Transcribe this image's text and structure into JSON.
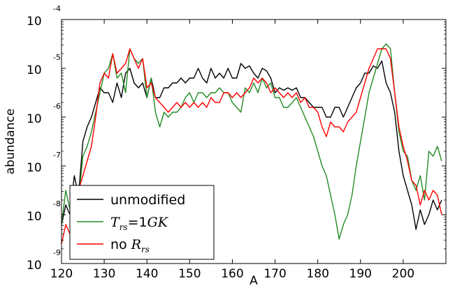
{
  "chart_data": {
    "type": "line",
    "xlabel": "A",
    "ylabel": "abundance",
    "xlim": [
      120,
      210
    ],
    "ylim_log10": [
      -9,
      -4
    ],
    "yscale": "log",
    "grid": false,
    "legend_placement": "lower-left",
    "x_ticks": [
      "120",
      "130",
      "140",
      "150",
      "160",
      "170",
      "180",
      "190",
      "200"
    ],
    "y_ticks": [
      {
        "base": "10",
        "exp": "-4"
      },
      {
        "base": "10",
        "exp": "-5"
      },
      {
        "base": "10",
        "exp": "-6"
      },
      {
        "base": "10",
        "exp": "-7"
      },
      {
        "base": "10",
        "exp": "-8"
      },
      {
        "base": "10",
        "exp": "-9"
      }
    ],
    "series": [
      {
        "name": "unmodified",
        "legend": {
          "parts": [
            {
              "t": "unmodified",
              "style": "plain"
            }
          ]
        },
        "color": "#000000",
        "x": [
          120,
          121,
          122,
          123,
          124,
          125,
          126,
          127,
          128,
          129,
          130,
          131,
          132,
          133,
          134,
          135,
          136,
          137,
          138,
          139,
          140,
          141,
          142,
          143,
          144,
          145,
          146,
          147,
          148,
          149,
          150,
          151,
          152,
          153,
          154,
          155,
          156,
          157,
          158,
          159,
          160,
          161,
          162,
          163,
          164,
          165,
          166,
          167,
          168,
          169,
          170,
          171,
          172,
          173,
          174,
          175,
          176,
          177,
          178,
          179,
          180,
          181,
          182,
          183,
          184,
          185,
          186,
          187,
          188,
          189,
          190,
          191,
          192,
          193,
          194,
          195,
          196,
          197,
          198,
          199,
          200,
          201,
          202,
          203,
          204,
          205,
          206,
          207,
          208,
          209
        ],
        "log10": [
          -8.2,
          -7.8,
          -8.0,
          -7.2,
          -7.6,
          -6.5,
          -6.2,
          -6.0,
          -5.7,
          -5.4,
          -5.5,
          -5.5,
          -5.7,
          -5.3,
          -5.6,
          -5.1,
          -5.0,
          -5.3,
          -5.4,
          -5.3,
          -5.6,
          -5.2,
          -5.6,
          -5.6,
          -5.4,
          -5.4,
          -5.3,
          -5.3,
          -5.2,
          -5.3,
          -5.2,
          -5.2,
          -5.0,
          -5.2,
          -5.3,
          -5.0,
          -5.2,
          -5.1,
          -5.2,
          -5.0,
          -5.2,
          -5.2,
          -4.9,
          -5.0,
          -4.95,
          -5.1,
          -5.2,
          -5.0,
          -5.05,
          -5.2,
          -5.5,
          -5.4,
          -5.45,
          -5.4,
          -5.45,
          -5.4,
          -5.6,
          -5.6,
          -5.7,
          -5.8,
          -5.8,
          -5.8,
          -6.0,
          -6.0,
          -5.8,
          -5.8,
          -6.0,
          -5.8,
          -5.6,
          -5.4,
          -5.3,
          -5.1,
          -5.1,
          -4.95,
          -5.0,
          -4.85,
          -5.3,
          -5.5,
          -5.9,
          -6.7,
          -7.2,
          -7.5,
          -7.8,
          -8.3,
          -7.9,
          -8.2,
          -8.0,
          -7.7,
          -7.9,
          -7.7
        ]
      },
      {
        "name": "T_rs=1GK",
        "legend": {
          "parts": [
            {
              "t": "T",
              "style": "math"
            },
            {
              "t": "rs",
              "style": "sub"
            },
            {
              "t": "=1",
              "style": "plainmath"
            },
            {
              "t": "GK",
              "style": "math"
            }
          ]
        },
        "color": "#228B22",
        "x": [
          120,
          121,
          122,
          123,
          124,
          125,
          126,
          127,
          128,
          129,
          130,
          131,
          132,
          133,
          134,
          135,
          136,
          137,
          138,
          139,
          140,
          141,
          142,
          143,
          144,
          145,
          146,
          147,
          148,
          149,
          150,
          151,
          152,
          153,
          154,
          155,
          156,
          157,
          158,
          159,
          160,
          161,
          162,
          163,
          164,
          165,
          166,
          167,
          168,
          169,
          170,
          171,
          172,
          173,
          174,
          175,
          176,
          177,
          178,
          179,
          180,
          181,
          182,
          183,
          184,
          185,
          186,
          187,
          188,
          189,
          190,
          191,
          192,
          193,
          194,
          195,
          196,
          197,
          198,
          199,
          200,
          201,
          202,
          203,
          204,
          205,
          206,
          207,
          208,
          209
        ],
        "log10": [
          -8.2,
          -7.5,
          -7.9,
          -7.4,
          -7.7,
          -6.8,
          -6.6,
          -6.3,
          -5.9,
          -5.5,
          -5.1,
          -5.0,
          -4.7,
          -5.2,
          -5.1,
          -5.5,
          -4.6,
          -4.8,
          -4.9,
          -4.8,
          -5.6,
          -5.2,
          -5.9,
          -6.2,
          -5.9,
          -6.0,
          -5.9,
          -5.9,
          -5.8,
          -5.6,
          -5.5,
          -5.7,
          -5.5,
          -5.5,
          -5.6,
          -5.5,
          -5.5,
          -5.4,
          -5.5,
          -5.5,
          -5.7,
          -5.8,
          -5.9,
          -5.4,
          -5.5,
          -5.3,
          -5.5,
          -5.2,
          -5.4,
          -5.3,
          -5.6,
          -5.6,
          -5.8,
          -5.8,
          -5.7,
          -5.6,
          -5.8,
          -6.0,
          -6.2,
          -6.4,
          -6.7,
          -7.0,
          -7.2,
          -7.6,
          -8.0,
          -8.5,
          -8.2,
          -8.0,
          -7.6,
          -7.0,
          -6.5,
          -6.0,
          -5.5,
          -5.2,
          -4.9,
          -4.6,
          -4.5,
          -4.6,
          -5.5,
          -6.3,
          -6.7,
          -6.8,
          -7.3,
          -7.5,
          -7.2,
          -7.7,
          -6.7,
          -6.8,
          -6.6,
          -6.9
        ]
      },
      {
        "name": "no R_rs",
        "legend": {
          "parts": [
            {
              "t": "no ",
              "style": "plain"
            },
            {
              "t": "R",
              "style": "math"
            },
            {
              "t": "rs",
              "style": "sub"
            }
          ]
        },
        "color": "#ff0000",
        "x": [
          120,
          121,
          122,
          123,
          124,
          125,
          126,
          127,
          128,
          129,
          130,
          131,
          132,
          133,
          134,
          135,
          136,
          137,
          138,
          139,
          140,
          141,
          142,
          143,
          144,
          145,
          146,
          147,
          148,
          149,
          150,
          151,
          152,
          153,
          154,
          155,
          156,
          157,
          158,
          159,
          160,
          161,
          162,
          163,
          164,
          165,
          166,
          167,
          168,
          169,
          170,
          171,
          172,
          173,
          174,
          175,
          176,
          177,
          178,
          179,
          180,
          181,
          182,
          183,
          184,
          185,
          186,
          187,
          188,
          189,
          190,
          191,
          192,
          193,
          194,
          195,
          196,
          197,
          198,
          199,
          200,
          201,
          202,
          203,
          204,
          205,
          206,
          207,
          208,
          209
        ],
        "log10": [
          -8.6,
          -8.2,
          -8.4,
          -8.0,
          -7.5,
          -7.2,
          -6.9,
          -6.6,
          -6.0,
          -5.3,
          -5.1,
          -5.2,
          -4.7,
          -5.1,
          -5.0,
          -4.9,
          -4.6,
          -4.8,
          -5.0,
          -4.8,
          -5.4,
          -5.3,
          -5.6,
          -5.7,
          -5.8,
          -5.9,
          -5.8,
          -5.7,
          -5.8,
          -5.7,
          -5.8,
          -5.7,
          -5.8,
          -5.7,
          -5.8,
          -5.6,
          -5.7,
          -5.7,
          -5.5,
          -5.5,
          -5.6,
          -5.5,
          -5.6,
          -5.5,
          -5.4,
          -5.2,
          -5.3,
          -5.2,
          -5.3,
          -5.5,
          -5.4,
          -5.5,
          -5.6,
          -5.5,
          -5.6,
          -5.5,
          -5.7,
          -5.6,
          -5.8,
          -5.8,
          -5.9,
          -6.2,
          -6.4,
          -6.1,
          -6.2,
          -6.2,
          -6.3,
          -6.1,
          -6.0,
          -5.9,
          -5.6,
          -5.3,
          -5.0,
          -4.8,
          -4.6,
          -4.6,
          -4.6,
          -4.8,
          -5.5,
          -6.2,
          -6.6,
          -6.9,
          -7.3,
          -7.4,
          -7.8,
          -7.5,
          -7.7,
          -7.5,
          -7.6,
          -8.0
        ]
      }
    ]
  }
}
